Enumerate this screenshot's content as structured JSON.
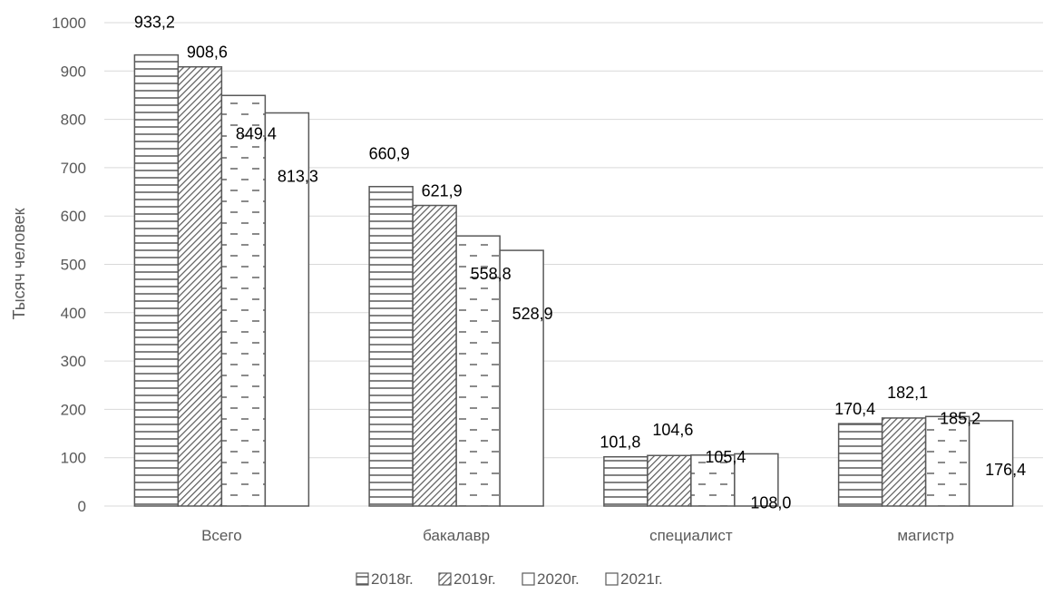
{
  "chart_data": {
    "type": "bar",
    "title": "",
    "xlabel": "",
    "ylabel": "Тысяч человек",
    "categories": [
      "Всего",
      "бакалавр",
      "специалист",
      "магистр"
    ],
    "series": [
      {
        "name": "2018г.",
        "pattern": "horizontal-lines",
        "values": [
          933.2,
          660.9,
          101.8,
          170.4
        ],
        "labels": [
          "933,2",
          "660,9",
          "101,8",
          "170,4"
        ]
      },
      {
        "name": "2019г.",
        "pattern": "diagonal-hatch",
        "values": [
          908.6,
          621.9,
          104.6,
          182.1
        ],
        "labels": [
          "908,6",
          "621,9",
          "104,6",
          "182,1"
        ]
      },
      {
        "name": "2020г.",
        "pattern": "dashed-lines",
        "values": [
          849.4,
          558.8,
          105.4,
          185.2
        ],
        "labels": [
          "849,4",
          "558,8",
          "105,4",
          "185,2"
        ]
      },
      {
        "name": "2021г.",
        "pattern": "solid-white",
        "values": [
          813.3,
          528.9,
          108.0,
          176.4
        ],
        "labels": [
          "813,3",
          "528,9",
          "108,0",
          "176,4"
        ]
      }
    ],
    "ylim": [
      0,
      1000
    ],
    "yticks": [
      0,
      100,
      200,
      300,
      400,
      500,
      600,
      700,
      800,
      900,
      1000
    ],
    "grid": true,
    "legend_position": "bottom",
    "colors": {
      "bar_stroke": "#595959",
      "grid": "#d9d9d9",
      "bar_fill": "#ffffff"
    }
  }
}
